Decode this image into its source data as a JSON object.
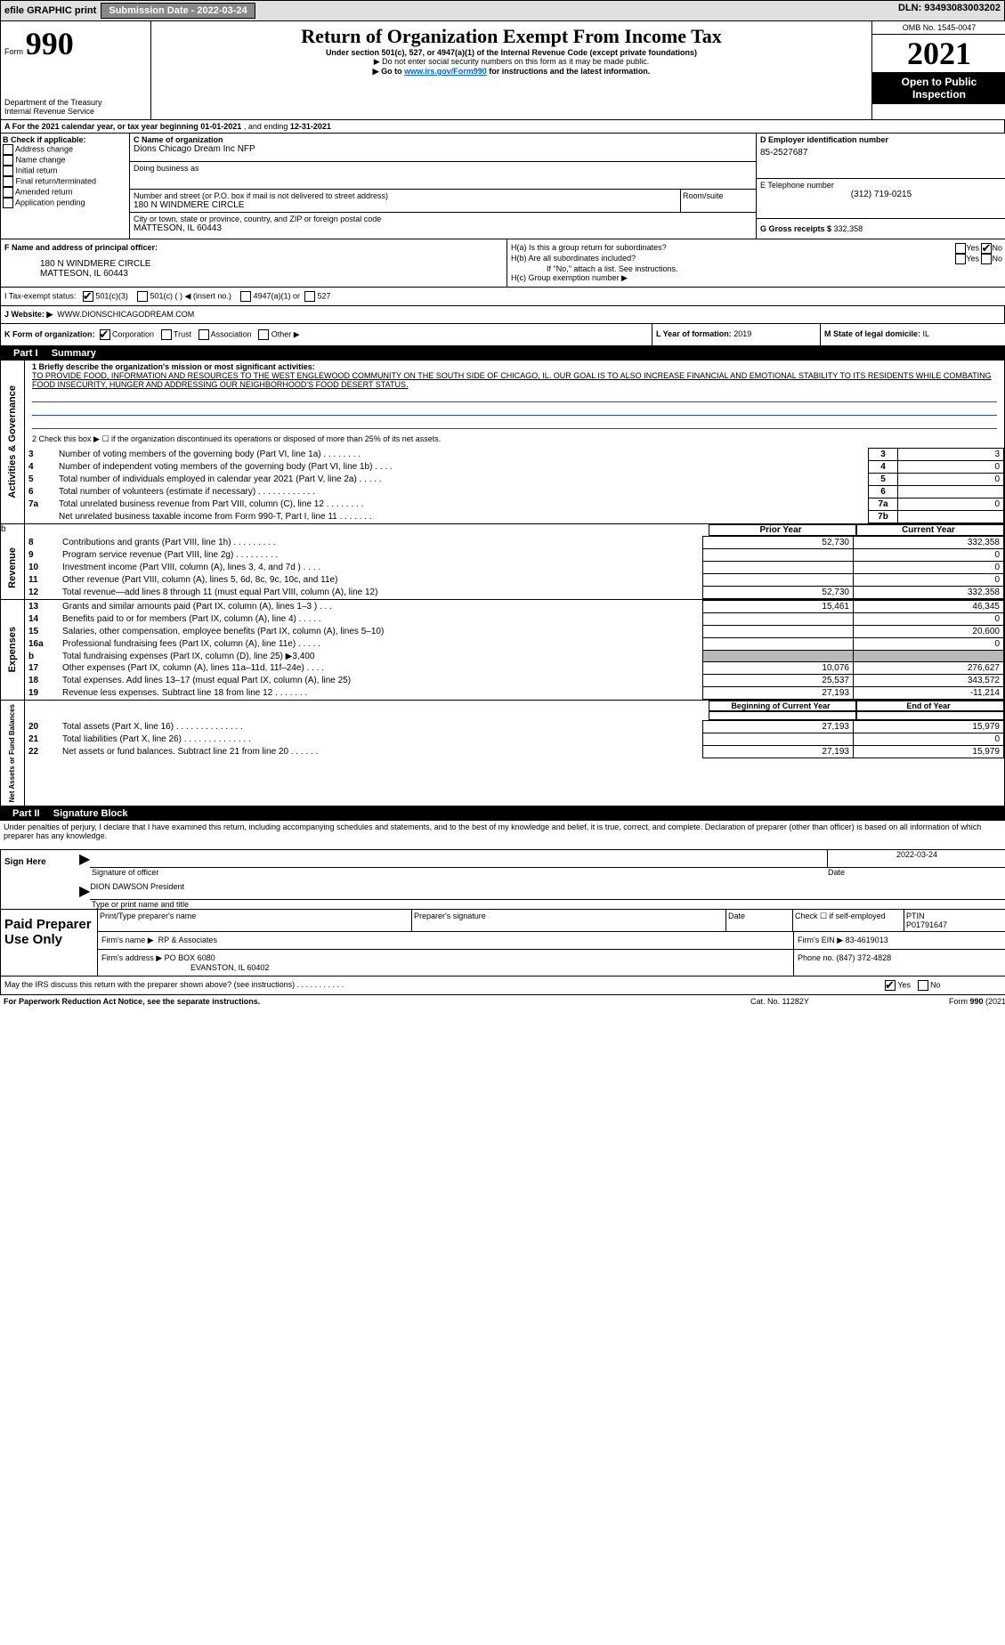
{
  "topbar": {
    "efile": "efile GRAPHIC print",
    "submission_label": "Submission Date - 2022-03-24",
    "dln": "DLN: 93493083003202"
  },
  "header": {
    "form_prefix": "Form",
    "form_number": "990",
    "dept": "Department of the Treasury",
    "irs": "Internal Revenue Service",
    "title": "Return of Organization Exempt From Income Tax",
    "subtitle": "Under section 501(c), 527, or 4947(a)(1) of the Internal Revenue Code (except private foundations)",
    "warn1": "▶ Do not enter social security numbers on this form as it may be made public.",
    "warn2_pre": "▶ Go to ",
    "warn2_link": "www.irs.gov/Form990",
    "warn2_post": " for instructions and the latest information.",
    "omb": "OMB No. 1545-0047",
    "year": "2021",
    "public": "Open to Public Inspection"
  },
  "a_line": {
    "pre": "A For the 2021 calendar year, or tax year beginning ",
    "begin": "01-01-2021",
    "mid": " , and ending ",
    "end": "12-31-2021"
  },
  "b": {
    "label": "B Check if applicable:",
    "items": [
      "Address change",
      "Name change",
      "Initial return",
      "Final return/terminated",
      "Amended return",
      "Application pending"
    ]
  },
  "c": {
    "name_label": "C Name of organization",
    "name": "Dions Chicago Dream Inc NFP",
    "dba_label": "Doing business as",
    "street_label": "Number and street (or P.O. box if mail is not delivered to street address)",
    "room_label": "Room/suite",
    "street": "180 N WINDMERE CIRCLE",
    "city_label": "City or town, state or province, country, and ZIP or foreign postal code",
    "city": "MATTESON, IL  60443"
  },
  "d": {
    "label": "D Employer identification number",
    "value": "85-2527687"
  },
  "e": {
    "label": "E Telephone number",
    "value": "(312) 719-0215"
  },
  "g": {
    "label": "G Gross receipts $ ",
    "value": "332,358"
  },
  "f": {
    "label": "F Name and address of principal officer:",
    "line1": "180 N WINDMERE CIRCLE",
    "line2": "MATTESON, IL  60443"
  },
  "h": {
    "a": "H(a)  Is this a group return for subordinates?",
    "b": "H(b)  Are all subordinates included?",
    "b_note": "If \"No,\" attach a list. See instructions.",
    "c": "H(c)  Group exemption number ▶",
    "yes": "Yes",
    "no": "No"
  },
  "i": {
    "label": "I  Tax-exempt status:",
    "o1": "501(c)(3)",
    "o2": "501(c) (   ) ◀ (insert no.)",
    "o3": "4947(a)(1) or",
    "o4": "527"
  },
  "j": {
    "label": "J  Website: ▶",
    "value": "WWW.DIONSCHICAGODREAM.COM"
  },
  "k": {
    "label": "K Form of organization:",
    "o1": "Corporation",
    "o2": "Trust",
    "o3": "Association",
    "o4": "Other ▶"
  },
  "l": {
    "label": "L Year of formation: ",
    "value": "2019"
  },
  "m": {
    "label": "M State of legal domicile: ",
    "value": "IL"
  },
  "part1": {
    "tab": "Part I",
    "title": "Summary",
    "q1": "1  Briefly describe the organization's mission or most significant activities:",
    "mission": "TO PROVIDE FOOD, INFORMATION AND RESOURCES TO THE WEST ENGLEWOOD COMMUNITY ON THE SOUTH SIDE OF CHICAGO, IL. OUR GOAL IS TO ALSO INCREASE FINANCIAL AND EMOTIONAL STABILITY TO ITS RESIDENTS WHILE COMBATING FOOD INSECURITY, HUNGER AND ADDRESSING OUR NEIGHBORHOOD'S FOOD DESERT STATUS.",
    "q2": "2   Check this box ▶ ☐ if the organization discontinued its operations or disposed of more than 25% of its net assets.",
    "rows_gov": [
      {
        "n": "3",
        "t": "Number of voting members of the governing body (Part VI, line 1a)   .    .    .    .    .    .    .    .",
        "box": "3",
        "v": "3"
      },
      {
        "n": "4",
        "t": "Number of independent voting members of the governing body (Part VI, line 1b)    .    .    .    .",
        "box": "4",
        "v": "0"
      },
      {
        "n": "5",
        "t": "Total number of individuals employed in calendar year 2021 (Part V, line 2a)   .    .    .    .    .",
        "box": "5",
        "v": "0"
      },
      {
        "n": "6",
        "t": "Total number of volunteers (estimate if necessary)    .    .    .    .    .    .    .    .    .    .    .    .",
        "box": "6",
        "v": ""
      },
      {
        "n": "7a",
        "t": "Total unrelated business revenue from Part VIII, column (C), line 12    .    .    .    .    .    .    .    .",
        "box": "7a",
        "v": "0"
      },
      {
        "n": "",
        "t": "Net unrelated business taxable income from Form 990-T, Part I, line 11   .    .    .    .    .    .    .",
        "box": "7b",
        "v": ""
      }
    ],
    "col_prior": "Prior Year",
    "col_current": "Current Year",
    "rows_rev": [
      {
        "n": "8",
        "t": "Contributions and grants (Part VIII, line 1h)    .    .    .    .    .    .    .    .    .",
        "p": "52,730",
        "c": "332,358"
      },
      {
        "n": "9",
        "t": "Program service revenue (Part VIII, line 2g)   .    .    .    .    .    .    .    .    .",
        "p": "",
        "c": "0"
      },
      {
        "n": "10",
        "t": "Investment income (Part VIII, column (A), lines 3, 4, and 7d )    .    .    .    .",
        "p": "",
        "c": "0"
      },
      {
        "n": "11",
        "t": "Other revenue (Part VIII, column (A), lines 5, 6d, 8c, 9c, 10c, and 11e)",
        "p": "",
        "c": "0"
      },
      {
        "n": "12",
        "t": "Total revenue—add lines 8 through 11 (must equal Part VIII, column (A), line 12)",
        "p": "52,730",
        "c": "332,358"
      }
    ],
    "rows_exp": [
      {
        "n": "13",
        "t": "Grants and similar amounts paid (Part IX, column (A), lines 1–3 )   .    .    .",
        "p": "15,461",
        "c": "46,345"
      },
      {
        "n": "14",
        "t": "Benefits paid to or for members (Part IX, column (A), line 4)   .    .    .    .    .",
        "p": "",
        "c": "0"
      },
      {
        "n": "15",
        "t": "Salaries, other compensation, employee benefits (Part IX, column (A), lines 5–10)",
        "p": "",
        "c": "20,600"
      },
      {
        "n": "16a",
        "t": "Professional fundraising fees (Part IX, column (A), line 11e)   .    .    .    .    .",
        "p": "",
        "c": "0"
      },
      {
        "n": "b",
        "t": "Total fundraising expenses (Part IX, column (D), line 25) ▶3,400",
        "p": "shade",
        "c": "shade"
      },
      {
        "n": "17",
        "t": "Other expenses (Part IX, column (A), lines 11a–11d, 11f–24e)   .    .    .    .",
        "p": "10,076",
        "c": "276,627"
      },
      {
        "n": "18",
        "t": "Total expenses. Add lines 13–17 (must equal Part IX, column (A), line 25)",
        "p": "25,537",
        "c": "343,572"
      },
      {
        "n": "19",
        "t": "Revenue less expenses. Subtract line 18 from line 12   .    .    .    .    .    .    .",
        "p": "27,193",
        "c": "-11,214"
      }
    ],
    "col_begin": "Beginning of Current Year",
    "col_end": "End of Year",
    "rows_net": [
      {
        "n": "20",
        "t": "Total assets (Part X, line 16)   .    .    .    .    .    .    .    .    .    .    .    .    .    .",
        "p": "27,193",
        "c": "15,979"
      },
      {
        "n": "21",
        "t": "Total liabilities (Part X, line 26)   .    .    .    .    .    .    .    .    .    .    .    .    .    .",
        "p": "",
        "c": "0"
      },
      {
        "n": "22",
        "t": "Net assets or fund balances. Subtract line 21 from line 20   .    .    .    .    .    .",
        "p": "27,193",
        "c": "15,979"
      }
    ],
    "side_gov": "Activities & Governance",
    "side_rev": "Revenue",
    "side_exp": "Expenses",
    "side_net": "Net Assets or Fund Balances",
    "b_mark": "b"
  },
  "part2": {
    "tab": "Part II",
    "title": "Signature Block",
    "decl": "Under penalties of perjury, I declare that I have examined this return, including accompanying schedules and statements, and to the best of my knowledge and belief, it is true, correct, and complete. Declaration of preparer (other than officer) is based on all information of which preparer has any knowledge.",
    "sign_here": "Sign Here",
    "sig_officer": "Signature of officer",
    "date": "Date",
    "sig_date": "2022-03-24",
    "name_title": "DION DAWSON President",
    "type_name": "Type or print name and title",
    "paid": "Paid Preparer Use Only",
    "h_print": "Print/Type preparer's name",
    "h_sig": "Preparer's signature",
    "h_date": "Date",
    "h_check": "Check ☐ if self-employed",
    "h_ptin": "PTIN",
    "ptin": "P01791647",
    "firm_name_l": "Firm's name   ▶",
    "firm_name": "RP & Associates",
    "firm_ein_l": "Firm's EIN ▶",
    "firm_ein": "83-4619013",
    "firm_addr_l": "Firm's address ▶",
    "firm_addr1": "PO BOX 6080",
    "firm_addr2": "EVANSTON, IL  60402",
    "phone_l": "Phone no. ",
    "phone": "(847) 372-4828",
    "discuss": "May the IRS discuss this return with the preparer shown above? (see instructions)    .    .    .    .    .    .    .    .    .    .    .",
    "yes": "Yes",
    "no": "No"
  },
  "footer": {
    "left": "For Paperwork Reduction Act Notice, see the separate instructions.",
    "mid": "Cat. No. 11282Y",
    "right_pre": "Form ",
    "right_form": "990",
    "right_post": " (2021)"
  }
}
